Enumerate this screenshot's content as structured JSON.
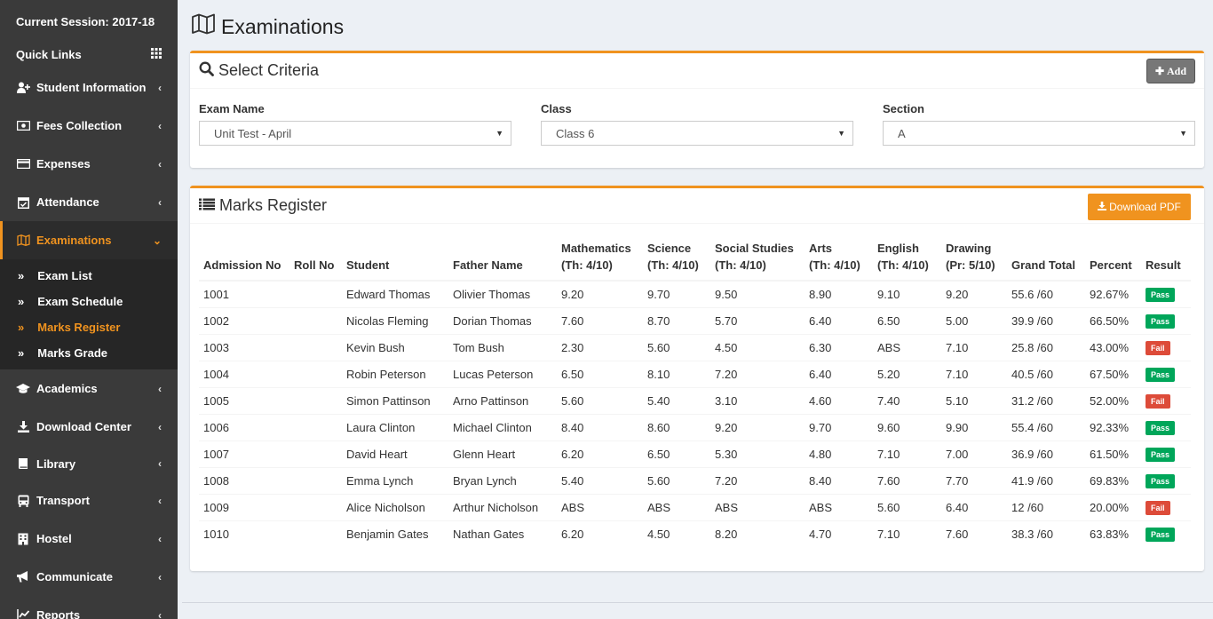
{
  "sidebar": {
    "session": "Current Session: 2017-18",
    "quick_links": "Quick Links",
    "items": [
      {
        "label": "Student Information",
        "icon": "user-plus-icon"
      },
      {
        "label": "Fees Collection",
        "icon": "money-icon"
      },
      {
        "label": "Expenses",
        "icon": "credit-card-icon"
      },
      {
        "label": "Attendance",
        "icon": "calendar-check-icon"
      },
      {
        "label": "Examinations",
        "icon": "map-icon"
      },
      {
        "label": "Academics",
        "icon": "graduation-cap-icon"
      },
      {
        "label": "Download Center",
        "icon": "download-icon"
      },
      {
        "label": "Library",
        "icon": "book-icon"
      },
      {
        "label": "Transport",
        "icon": "bus-icon"
      },
      {
        "label": "Hostel",
        "icon": "building-icon"
      },
      {
        "label": "Communicate",
        "icon": "bullhorn-icon"
      },
      {
        "label": "Reports",
        "icon": "line-chart-icon"
      }
    ],
    "sub_items": [
      {
        "label": "Exam List"
      },
      {
        "label": "Exam Schedule"
      },
      {
        "label": "Marks Register"
      },
      {
        "label": "Marks Grade"
      }
    ]
  },
  "page": {
    "title": "Examinations"
  },
  "criteria": {
    "title": "Select Criteria",
    "add_label": "Add",
    "exam_label": "Exam Name",
    "exam_value": "Unit Test - April",
    "class_label": "Class",
    "class_value": "Class 6",
    "section_label": "Section",
    "section_value": "A"
  },
  "register": {
    "title": "Marks Register",
    "download_label": "Download PDF",
    "columns": [
      {
        "l1": "",
        "l2": "Admission No"
      },
      {
        "l1": "",
        "l2": "Roll No"
      },
      {
        "l1": "",
        "l2": "Student"
      },
      {
        "l1": "",
        "l2": "Father Name"
      },
      {
        "l1": "Mathematics",
        "l2": "(Th: 4/10)"
      },
      {
        "l1": "Science",
        "l2": "(Th: 4/10)"
      },
      {
        "l1": "Social Studies",
        "l2": "(Th: 4/10)"
      },
      {
        "l1": "Arts",
        "l2": "(Th: 4/10)"
      },
      {
        "l1": "English",
        "l2": "(Th: 4/10)"
      },
      {
        "l1": "Drawing",
        "l2": "(Pr: 5/10)"
      },
      {
        "l1": "",
        "l2": "Grand Total"
      },
      {
        "l1": "",
        "l2": "Percent"
      },
      {
        "l1": "",
        "l2": "Result"
      }
    ],
    "rows": [
      {
        "adm": "1001",
        "roll": "",
        "student": "Edward Thomas",
        "father": "Olivier Thomas",
        "marks": [
          "9.20",
          "9.70",
          "9.50",
          "8.90",
          "9.10",
          "9.20"
        ],
        "total": "55.6 /60",
        "percent": "92.67%",
        "result": "Pass"
      },
      {
        "adm": "1002",
        "roll": "",
        "student": "Nicolas Fleming",
        "father": "Dorian Thomas",
        "marks": [
          "7.60",
          "8.70",
          "5.70",
          "6.40",
          "6.50",
          "5.00"
        ],
        "total": "39.9 /60",
        "percent": "66.50%",
        "result": "Pass"
      },
      {
        "adm": "1003",
        "roll": "",
        "student": "Kevin Bush",
        "father": "Tom Bush",
        "marks": [
          "2.30",
          "5.60",
          "4.50",
          "6.30",
          "ABS",
          "7.10"
        ],
        "total": "25.8 /60",
        "percent": "43.00%",
        "result": "Fail"
      },
      {
        "adm": "1004",
        "roll": "",
        "student": "Robin Peterson",
        "father": "Lucas Peterson",
        "marks": [
          "6.50",
          "8.10",
          "7.20",
          "6.40",
          "5.20",
          "7.10"
        ],
        "total": "40.5 /60",
        "percent": "67.50%",
        "result": "Pass"
      },
      {
        "adm": "1005",
        "roll": "",
        "student": "Simon Pattinson",
        "father": "Arno Pattinson",
        "marks": [
          "5.60",
          "5.40",
          "3.10",
          "4.60",
          "7.40",
          "5.10"
        ],
        "total": "31.2 /60",
        "percent": "52.00%",
        "result": "Fail"
      },
      {
        "adm": "1006",
        "roll": "",
        "student": "Laura Clinton",
        "father": "Michael Clinton",
        "marks": [
          "8.40",
          "8.60",
          "9.20",
          "9.70",
          "9.60",
          "9.90"
        ],
        "total": "55.4 /60",
        "percent": "92.33%",
        "result": "Pass"
      },
      {
        "adm": "1007",
        "roll": "",
        "student": "David Heart",
        "father": "Glenn Heart",
        "marks": [
          "6.20",
          "6.50",
          "5.30",
          "4.80",
          "7.10",
          "7.00"
        ],
        "total": "36.9 /60",
        "percent": "61.50%",
        "result": "Pass"
      },
      {
        "adm": "1008",
        "roll": "",
        "student": "Emma Lynch",
        "father": "Bryan Lynch",
        "marks": [
          "5.40",
          "5.60",
          "7.20",
          "8.40",
          "7.60",
          "7.70"
        ],
        "total": "41.9 /60",
        "percent": "69.83%",
        "result": "Pass"
      },
      {
        "adm": "1009",
        "roll": "",
        "student": "Alice Nicholson",
        "father": "Arthur Nicholson",
        "marks": [
          "ABS",
          "ABS",
          "ABS",
          "ABS",
          "5.60",
          "6.40"
        ],
        "total": "12 /60",
        "percent": "20.00%",
        "result": "Fail"
      },
      {
        "adm": "1010",
        "roll": "",
        "student": "Benjamin Gates",
        "father": "Nathan Gates",
        "marks": [
          "6.20",
          "4.50",
          "8.20",
          "4.70",
          "7.10",
          "7.60"
        ],
        "total": "38.3 /60",
        "percent": "63.83%",
        "result": "Pass"
      }
    ]
  },
  "colors": {
    "accent": "#f0931f",
    "pass": "#00a65a",
    "fail": "#dd4b39",
    "sidebar": "#3a3a3a"
  }
}
